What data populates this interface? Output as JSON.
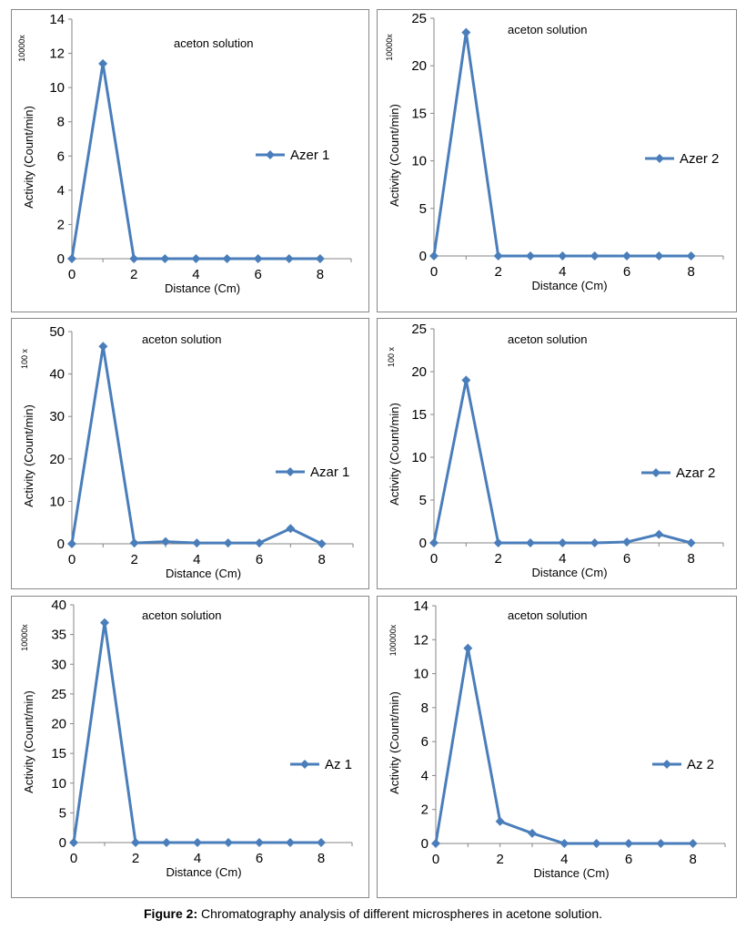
{
  "figure": {
    "caption_label": "Figure 2:",
    "caption_text": " Chromatography analysis of different microspheres in acetone solution."
  },
  "style": {
    "series_color": "#4a7ebb",
    "axis_color": "#868686",
    "border_color": "#888888"
  },
  "chart_data": [
    {
      "type": "line",
      "title": "aceton solution",
      "scale_label": "10000x",
      "xlabel": "Distance  (Cm)",
      "ylabel": "Activity (Count/min)",
      "xlim": [
        0,
        9
      ],
      "ylim": [
        0,
        14
      ],
      "xticks": [
        0,
        2,
        4,
        6,
        8
      ],
      "yticks": [
        0,
        2,
        4,
        6,
        8,
        10,
        12,
        14
      ],
      "legend": "right",
      "series": [
        {
          "name": "Azer 1",
          "x": [
            0,
            1,
            2,
            3,
            4,
            5,
            6,
            7,
            8
          ],
          "y": [
            0,
            11.4,
            0,
            0,
            0,
            0,
            0,
            0,
            0
          ]
        }
      ]
    },
    {
      "type": "line",
      "title": "aceton solution",
      "scale_label": "10000x",
      "xlabel": "Distance  (Cm)",
      "ylabel": "Activity (Count/min)",
      "xlim": [
        0,
        9
      ],
      "ylim": [
        0,
        25
      ],
      "xticks": [
        0,
        2,
        4,
        6,
        8
      ],
      "yticks": [
        0,
        5,
        10,
        15,
        20,
        25
      ],
      "legend": "right",
      "series": [
        {
          "name": "Azer 2",
          "x": [
            0,
            1,
            2,
            3,
            4,
            5,
            6,
            7,
            8
          ],
          "y": [
            0,
            23.5,
            0,
            0,
            0,
            0,
            0,
            0,
            0
          ]
        }
      ]
    },
    {
      "type": "line",
      "title": "aceton solution",
      "scale_label": "100 x",
      "xlabel": "Distance  (Cm)",
      "ylabel": "Activity (Count/min)",
      "xlim": [
        0,
        9
      ],
      "ylim": [
        0,
        50
      ],
      "xticks": [
        0,
        2,
        4,
        6,
        8
      ],
      "yticks": [
        0,
        10,
        20,
        30,
        40,
        50
      ],
      "legend": "right",
      "series": [
        {
          "name": "Azar 1",
          "x": [
            0,
            1,
            2,
            3,
            4,
            5,
            6,
            7,
            8
          ],
          "y": [
            0,
            46.5,
            0.2,
            0.5,
            0.2,
            0.2,
            0.2,
            3.6,
            0
          ]
        }
      ]
    },
    {
      "type": "line",
      "title": "aceton solution",
      "scale_label": "100 x",
      "xlabel": "Distance  (Cm)",
      "ylabel": "Activity (Count/min)",
      "xlim": [
        0,
        9
      ],
      "ylim": [
        0,
        25
      ],
      "xticks": [
        0,
        2,
        4,
        6,
        8
      ],
      "yticks": [
        0,
        5,
        10,
        15,
        20,
        25
      ],
      "legend": "right",
      "series": [
        {
          "name": "Azar 2",
          "x": [
            0,
            1,
            2,
            3,
            4,
            5,
            6,
            7,
            8
          ],
          "y": [
            0,
            19,
            0,
            0,
            0,
            0,
            0.1,
            1,
            0
          ]
        }
      ]
    },
    {
      "type": "line",
      "title": "aceton solution",
      "scale_label": "10000x",
      "xlabel": "Distance  (Cm)",
      "ylabel": "Activity (Count/min)",
      "xlim": [
        0,
        9
      ],
      "ylim": [
        0,
        40
      ],
      "xticks": [
        0,
        2,
        4,
        6,
        8
      ],
      "yticks": [
        0,
        5,
        10,
        15,
        20,
        25,
        30,
        35,
        40
      ],
      "legend": "right",
      "series": [
        {
          "name": "Az 1",
          "x": [
            0,
            1,
            2,
            3,
            4,
            5,
            6,
            7,
            8
          ],
          "y": [
            0,
            37,
            0,
            0,
            0,
            0,
            0,
            0,
            0
          ]
        }
      ]
    },
    {
      "type": "line",
      "title": "aceton solution",
      "scale_label": "100000x",
      "xlabel": "Distance  (Cm)",
      "ylabel": "Activity (Count/min)",
      "xlim": [
        0,
        9
      ],
      "ylim": [
        0,
        14
      ],
      "xticks": [
        0,
        2,
        4,
        6,
        8
      ],
      "yticks": [
        0,
        2,
        4,
        6,
        8,
        10,
        12,
        14
      ],
      "legend": "right",
      "series": [
        {
          "name": "Az 2",
          "x": [
            0,
            1,
            2,
            3,
            4,
            5,
            6,
            7,
            8
          ],
          "y": [
            0,
            11.5,
            1.3,
            0.6,
            0,
            0,
            0,
            0,
            0
          ]
        }
      ]
    }
  ]
}
